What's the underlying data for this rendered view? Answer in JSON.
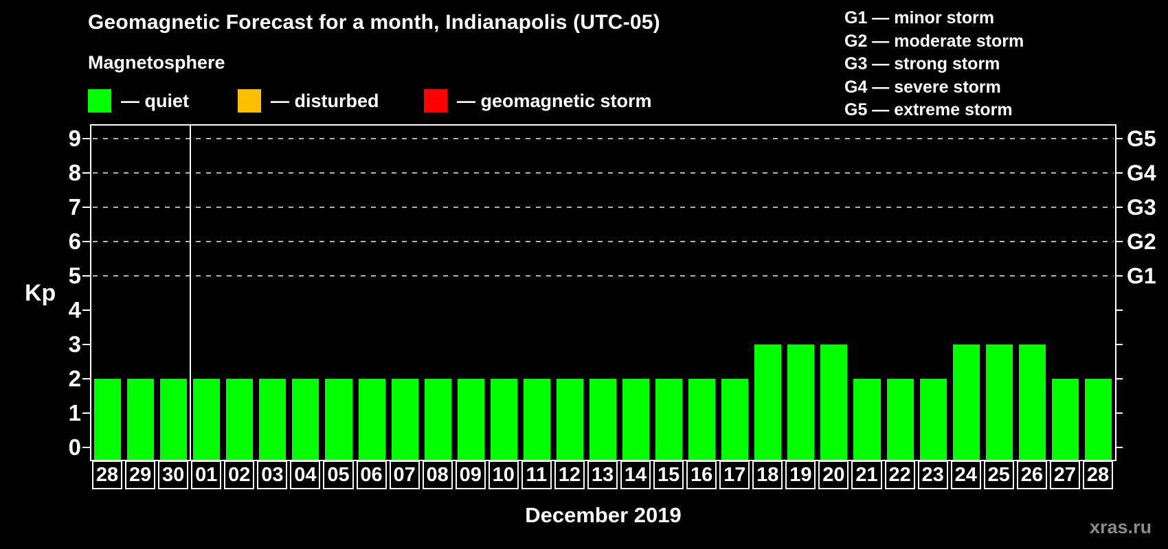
{
  "title": "Geomagnetic Forecast for a month, Indianapolis (UTC-05)",
  "subtitle": "Magnetosphere",
  "legend": {
    "items": [
      {
        "name": "quiet",
        "label": "— quiet",
        "color": "#00ff00"
      },
      {
        "name": "disturbed",
        "label": "— disturbed",
        "color": "#ffbf00"
      },
      {
        "name": "geomagnetic-storm",
        "label": "— geomagnetic storm",
        "color": "#ff0000"
      }
    ]
  },
  "g_scale_legend": [
    "G1 — minor storm",
    "G2 — moderate storm",
    "G3 — strong storm",
    "G4 — severe storm",
    "G5 — extreme storm"
  ],
  "watermark": "xras.ru",
  "chart_data": {
    "type": "bar",
    "title": "Geomagnetic Forecast for a month, Indianapolis (UTC-05)",
    "ylabel": "Kp",
    "xlabel": "December 2019",
    "ylim": [
      0,
      9
    ],
    "yticks": [
      0,
      1,
      2,
      3,
      4,
      5,
      6,
      7,
      8,
      9
    ],
    "grid": "dashed horizontal lines at Kp 5-9 only",
    "gridlines_at": [
      5,
      6,
      7,
      8,
      9
    ],
    "right_axis_labels": [
      {
        "label": "G1",
        "kp": 5
      },
      {
        "label": "G2",
        "kp": 6
      },
      {
        "label": "G3",
        "kp": 7
      },
      {
        "label": "G4",
        "kp": 8
      },
      {
        "label": "G5",
        "kp": 9
      }
    ],
    "month_boundary_after_index": 2,
    "categories": [
      "28",
      "29",
      "30",
      "01",
      "02",
      "03",
      "04",
      "05",
      "06",
      "07",
      "08",
      "09",
      "10",
      "11",
      "12",
      "13",
      "14",
      "15",
      "16",
      "17",
      "18",
      "19",
      "20",
      "21",
      "22",
      "23",
      "24",
      "25",
      "26",
      "27",
      "28"
    ],
    "values": [
      2,
      2,
      2,
      2,
      2,
      2,
      2,
      2,
      2,
      2,
      2,
      2,
      2,
      2,
      2,
      2,
      2,
      2,
      2,
      2,
      3,
      3,
      3,
      2,
      2,
      2,
      3,
      3,
      3,
      2,
      2
    ],
    "bar_color": "#00ff00",
    "bar_status": "quiet"
  }
}
